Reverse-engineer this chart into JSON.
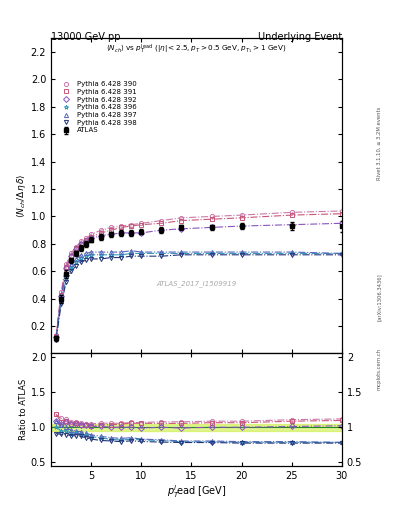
{
  "title_left": "13000 GeV pp",
  "title_right": "Underlying Event",
  "watermark": "ATLAS_2017_I1509919",
  "ylabel_main": "<N_ch / Delta_eta delta>",
  "ylabel_ratio": "Ratio to ATLAS",
  "xlabel": "p_T^lead [GeV]",
  "ylim_main": [
    0.0,
    2.3
  ],
  "ylim_ratio": [
    0.45,
    2.05
  ],
  "yticks_main": [
    0.2,
    0.4,
    0.6,
    0.8,
    1.0,
    1.2,
    1.4,
    1.6,
    1.8,
    2.0,
    2.2
  ],
  "yticks_ratio": [
    0.5,
    1.0,
    1.5,
    2.0
  ],
  "xlim": [
    1,
    30
  ],
  "atlas_x": [
    1.5,
    2.0,
    2.5,
    3.0,
    3.5,
    4.0,
    4.5,
    5.0,
    6.0,
    7.0,
    8.0,
    9.0,
    10.0,
    12.0,
    14.0,
    17.0,
    20.0,
    25.0,
    30.0
  ],
  "atlas_y": [
    0.11,
    0.4,
    0.58,
    0.68,
    0.73,
    0.77,
    0.8,
    0.83,
    0.85,
    0.87,
    0.88,
    0.88,
    0.89,
    0.9,
    0.92,
    0.92,
    0.93,
    0.93,
    0.93
  ],
  "atlas_yerr": [
    0.02,
    0.03,
    0.03,
    0.02,
    0.02,
    0.02,
    0.02,
    0.02,
    0.02,
    0.02,
    0.02,
    0.02,
    0.02,
    0.02,
    0.02,
    0.02,
    0.02,
    0.03,
    0.04
  ],
  "series": [
    {
      "label": "Pythia 6.428 390",
      "color": "#c97aaa",
      "marker": "o",
      "x": [
        1.5,
        2.0,
        2.5,
        3.0,
        3.5,
        4.0,
        4.5,
        5.0,
        6.0,
        7.0,
        8.0,
        9.0,
        10.0,
        12.0,
        14.0,
        17.0,
        20.0,
        25.0,
        30.0
      ],
      "y": [
        0.13,
        0.45,
        0.65,
        0.73,
        0.78,
        0.82,
        0.84,
        0.87,
        0.9,
        0.92,
        0.93,
        0.94,
        0.95,
        0.97,
        0.99,
        1.0,
        1.01,
        1.03,
        1.04
      ],
      "linestyle": "-."
    },
    {
      "label": "Pythia 6.428 391",
      "color": "#c95577",
      "marker": "s",
      "x": [
        1.5,
        2.0,
        2.5,
        3.0,
        3.5,
        4.0,
        4.5,
        5.0,
        6.0,
        7.0,
        8.0,
        9.0,
        10.0,
        12.0,
        14.0,
        17.0,
        20.0,
        25.0,
        30.0
      ],
      "y": [
        0.13,
        0.43,
        0.63,
        0.71,
        0.77,
        0.8,
        0.83,
        0.85,
        0.88,
        0.9,
        0.92,
        0.93,
        0.94,
        0.95,
        0.97,
        0.98,
        0.99,
        1.01,
        1.02
      ],
      "linestyle": "-."
    },
    {
      "label": "Pythia 6.428 392",
      "color": "#8855bb",
      "marker": "D",
      "x": [
        1.5,
        2.0,
        2.5,
        3.0,
        3.5,
        4.0,
        4.5,
        5.0,
        6.0,
        7.0,
        8.0,
        9.0,
        10.0,
        12.0,
        14.0,
        17.0,
        20.0,
        25.0,
        30.0
      ],
      "y": [
        0.12,
        0.42,
        0.62,
        0.71,
        0.76,
        0.8,
        0.82,
        0.84,
        0.86,
        0.87,
        0.88,
        0.88,
        0.88,
        0.9,
        0.91,
        0.92,
        0.93,
        0.94,
        0.95
      ],
      "linestyle": "-."
    },
    {
      "label": "Pythia 6.428 396",
      "color": "#3399bb",
      "marker": "*",
      "x": [
        1.5,
        2.0,
        2.5,
        3.0,
        3.5,
        4.0,
        4.5,
        5.0,
        6.0,
        7.0,
        8.0,
        9.0,
        10.0,
        12.0,
        14.0,
        17.0,
        20.0,
        25.0,
        30.0
      ],
      "y": [
        0.11,
        0.38,
        0.55,
        0.62,
        0.67,
        0.7,
        0.71,
        0.72,
        0.72,
        0.72,
        0.72,
        0.73,
        0.73,
        0.73,
        0.73,
        0.73,
        0.73,
        0.73,
        0.73
      ],
      "linestyle": "-."
    },
    {
      "label": "Pythia 6.428 397",
      "color": "#5566bb",
      "marker": "^",
      "x": [
        1.5,
        2.0,
        2.5,
        3.0,
        3.5,
        4.0,
        4.5,
        5.0,
        6.0,
        7.0,
        8.0,
        9.0,
        10.0,
        12.0,
        14.0,
        17.0,
        20.0,
        25.0,
        30.0
      ],
      "y": [
        0.12,
        0.41,
        0.58,
        0.65,
        0.69,
        0.72,
        0.73,
        0.74,
        0.74,
        0.74,
        0.74,
        0.75,
        0.74,
        0.74,
        0.74,
        0.74,
        0.74,
        0.74,
        0.73
      ],
      "linestyle": "-."
    },
    {
      "label": "Pythia 6.428 398",
      "color": "#223377",
      "marker": "v",
      "x": [
        1.5,
        2.0,
        2.5,
        3.0,
        3.5,
        4.0,
        4.5,
        5.0,
        6.0,
        7.0,
        8.0,
        9.0,
        10.0,
        12.0,
        14.0,
        17.0,
        20.0,
        25.0,
        30.0
      ],
      "y": [
        0.1,
        0.36,
        0.52,
        0.6,
        0.64,
        0.67,
        0.68,
        0.69,
        0.69,
        0.7,
        0.7,
        0.71,
        0.71,
        0.71,
        0.72,
        0.72,
        0.72,
        0.72,
        0.72
      ],
      "linestyle": "-."
    }
  ]
}
